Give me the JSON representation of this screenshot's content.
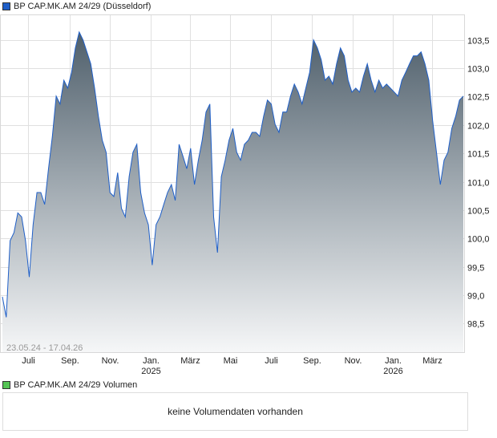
{
  "legend": {
    "price_label": "BP CAP.MK.AM 24/29 (Düsseldorf)",
    "price_color": "#1f5fc8",
    "volume_label": "BP CAP.MK.AM 24/29 Volumen",
    "volume_color": "#55c455"
  },
  "volume": {
    "message": "keine Volumendaten vorhanden"
  },
  "chart_data": {
    "type": "area",
    "title": "BP CAP.MK.AM 24/29 (Düsseldorf)",
    "range_label": "23.05.24 - 17.04.26",
    "x_start": "2024-05-23",
    "x_end": "2026-04-17",
    "ylim": [
      97.98,
      103.95
    ],
    "grid": true,
    "y_ticks": [
      {
        "value": 98.5,
        "label": "98,5"
      },
      {
        "value": 99.0,
        "label": "99,0"
      },
      {
        "value": 99.5,
        "label": "99,5"
      },
      {
        "value": 100.0,
        "label": "100,0"
      },
      {
        "value": 100.5,
        "label": "100,5"
      },
      {
        "value": 101.0,
        "label": "101,0"
      },
      {
        "value": 101.5,
        "label": "101,5"
      },
      {
        "value": 102.0,
        "label": "102,0"
      },
      {
        "value": 102.5,
        "label": "102,5"
      },
      {
        "value": 103.0,
        "label": "103,0"
      },
      {
        "value": 103.5,
        "label": "103,5"
      }
    ],
    "x_ticks": [
      {
        "date": "2024-07-01",
        "label": "Juli"
      },
      {
        "date": "2024-09-01",
        "label": "Sep."
      },
      {
        "date": "2024-11-01",
        "label": "Nov."
      },
      {
        "date": "2025-01-01",
        "label": "Jan.",
        "year": "2025"
      },
      {
        "date": "2025-03-01",
        "label": "März"
      },
      {
        "date": "2025-05-01",
        "label": "Mai"
      },
      {
        "date": "2025-07-01",
        "label": "Juli"
      },
      {
        "date": "2025-09-01",
        "label": "Sep."
      },
      {
        "date": "2025-11-01",
        "label": "Nov."
      },
      {
        "date": "2026-01-01",
        "label": "Jan.",
        "year": "2026"
      },
      {
        "date": "2026-03-01",
        "label": "März"
      }
    ],
    "values": [
      98.97,
      98.61,
      99.96,
      100.1,
      100.45,
      100.38,
      99.96,
      99.32,
      100.24,
      100.81,
      100.81,
      100.6,
      101.23,
      101.8,
      102.51,
      102.37,
      102.79,
      102.65,
      102.93,
      103.36,
      103.64,
      103.5,
      103.29,
      103.08,
      102.65,
      102.15,
      101.73,
      101.52,
      100.81,
      100.74,
      101.16,
      100.53,
      100.38,
      101.09,
      101.52,
      101.66,
      100.81,
      100.45,
      100.24,
      99.53,
      100.24,
      100.38,
      100.6,
      100.81,
      100.95,
      100.67,
      101.66,
      101.45,
      101.23,
      101.59,
      100.95,
      101.38,
      101.73,
      102.23,
      102.37,
      100.38,
      99.75,
      101.09,
      101.38,
      101.73,
      101.94,
      101.52,
      101.38,
      101.66,
      101.73,
      101.87,
      101.87,
      101.8,
      102.15,
      102.44,
      102.37,
      102.01,
      101.87,
      102.23,
      102.23,
      102.51,
      102.72,
      102.58,
      102.37,
      102.65,
      102.93,
      103.5,
      103.36,
      103.15,
      102.79,
      102.86,
      102.72,
      103.08,
      103.36,
      103.22,
      102.79,
      102.58,
      102.65,
      102.58,
      102.86,
      103.08,
      102.79,
      102.58,
      102.79,
      102.65,
      102.72,
      102.65,
      102.58,
      102.51,
      102.79,
      102.93,
      103.08,
      103.22,
      103.22,
      103.29,
      103.08,
      102.79,
      102.08,
      101.52,
      100.95,
      101.38,
      101.52,
      101.94,
      102.15,
      102.44,
      102.51
    ]
  }
}
